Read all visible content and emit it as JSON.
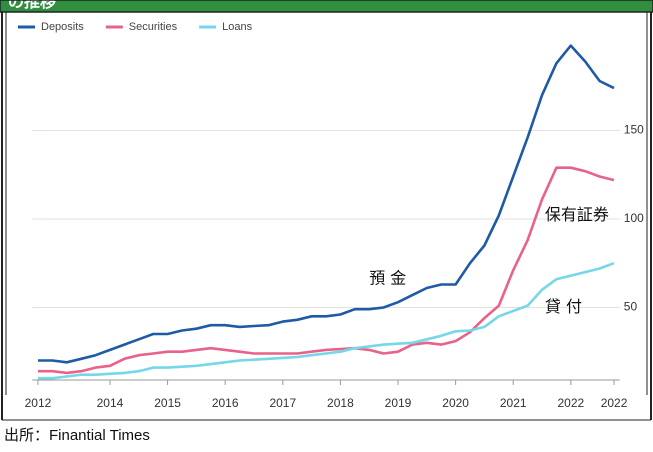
{
  "header": {
    "title": "の推移"
  },
  "chart_data": {
    "type": "line",
    "x": [
      2012.75,
      2013,
      2013.25,
      2013.5,
      2013.75,
      2014,
      2014.25,
      2014.5,
      2014.75,
      2015,
      2015.25,
      2015.5,
      2015.75,
      2016,
      2016.25,
      2016.5,
      2016.75,
      2017,
      2017.25,
      2017.5,
      2017.75,
      2018,
      2018.25,
      2018.5,
      2018.75,
      2019,
      2019.25,
      2019.5,
      2019.75,
      2020,
      2020.25,
      2020.5,
      2020.75,
      2021,
      2021.25,
      2021.5,
      2021.75,
      2022,
      2022.25,
      2022.5,
      2022.75
    ],
    "series": [
      {
        "name": "Deposits",
        "color": "#1f5aa6",
        "values": [
          20,
          20,
          19,
          21,
          23,
          26,
          29,
          32,
          35,
          35,
          37,
          38,
          40,
          40,
          39,
          39.5,
          40,
          42,
          43,
          45,
          45,
          46,
          49,
          49,
          50,
          53,
          57,
          61,
          63,
          63,
          75,
          85,
          102,
          124,
          146,
          170,
          188,
          198,
          189,
          178,
          174
        ]
      },
      {
        "name": "Securities",
        "color": "#e8628a",
        "values": [
          14,
          14,
          13,
          14,
          16,
          17,
          21,
          23,
          24,
          25,
          25,
          26,
          27,
          26,
          25,
          24,
          24,
          24,
          24,
          25,
          26,
          26.5,
          27,
          26,
          24,
          25,
          29,
          30,
          29,
          31,
          36,
          44,
          51,
          71,
          88,
          111,
          129,
          129,
          127,
          124,
          122
        ]
      },
      {
        "name": "Loans",
        "color": "#76d7ea",
        "values": [
          10,
          10,
          11,
          12,
          12,
          12.5,
          13,
          14,
          16,
          16,
          16.5,
          17,
          18,
          19,
          20,
          20.5,
          21,
          21.5,
          22,
          23,
          24,
          25,
          27,
          28,
          29,
          29.5,
          30,
          32,
          34,
          36.5,
          37,
          39,
          45,
          48,
          51,
          60,
          66,
          68,
          70,
          72,
          75
        ]
      }
    ],
    "xlim": [
      2012.65,
      2022.85
    ],
    "xticks": [
      {
        "value": 2012.75,
        "label": "2012"
      },
      2014,
      2015,
      2016,
      2017,
      2018,
      2019,
      2020,
      2021,
      2022,
      {
        "value": 2022.75,
        "label": "2022"
      }
    ],
    "ylim": [
      9,
      217
    ],
    "yticks": [
      50,
      100,
      150
    ],
    "grid": true,
    "legend": "top-left",
    "annotations": [
      {
        "text": "預 金",
        "x": 2018.5,
        "y": 66
      },
      {
        "text": "保有証券",
        "x": 2021.55,
        "y": 102
      },
      {
        "text": "貸 付",
        "x": 2021.55,
        "y": 50
      }
    ],
    "source": "出所：Finantial Times"
  }
}
